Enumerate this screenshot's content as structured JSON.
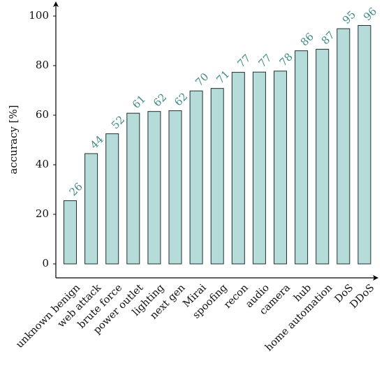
{
  "chart_data": {
    "type": "bar",
    "title": "",
    "xlabel": "",
    "ylabel": "accuracy [%]",
    "ylim": [
      0,
      100
    ],
    "yticks": [
      0,
      20,
      40,
      60,
      80,
      100
    ],
    "grid": false,
    "categories": [
      "unknown benign",
      "web attack",
      "brute force",
      "power outlet",
      "lighting",
      "next gen",
      "Mirai",
      "spoofing",
      "recon",
      "audio",
      "camera",
      "hub",
      "home automation",
      "DoS",
      "DDoS"
    ],
    "values": [
      25.5,
      44.5,
      52.5,
      60.8,
      61.5,
      61.8,
      69.8,
      70.8,
      77.3,
      77.4,
      77.8,
      86.0,
      86.6,
      94.9,
      96.2
    ],
    "value_labels": [
      "26",
      "44",
      "52",
      "61",
      "62",
      "62",
      "70",
      "71",
      "77",
      "77",
      "78",
      "86",
      "87",
      "95",
      "96"
    ],
    "colors": {
      "bar_fill": "#b5dcd9",
      "bar_stroke": "#1f2f2f",
      "label": "#3f8a88",
      "axis": "#000000"
    }
  }
}
